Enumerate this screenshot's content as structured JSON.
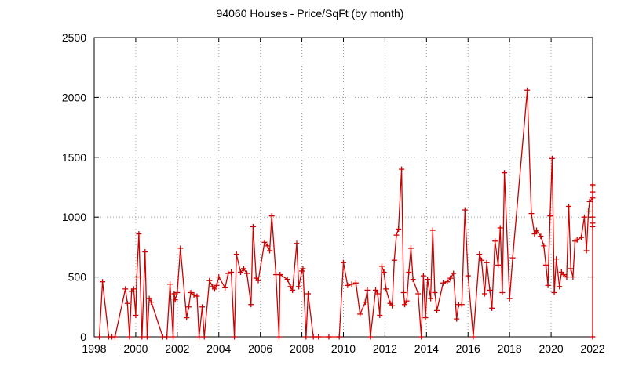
{
  "chart_data": {
    "type": "line",
    "title": "94060 Houses - Price/SqFt (by month)",
    "xlabel": "",
    "ylabel": "",
    "xlim": [
      1998,
      2022
    ],
    "ylim": [
      0,
      2500
    ],
    "xticks": [
      1998,
      2000,
      2002,
      2004,
      2006,
      2008,
      2010,
      2012,
      2014,
      2016,
      2018,
      2020,
      2022
    ],
    "yticks": [
      0,
      500,
      1000,
      1500,
      2000,
      2500
    ],
    "grid": true,
    "legend": "none",
    "color": "#cc0000",
    "series": [
      {
        "points": [
          [
            1998.25,
            0
          ],
          [
            1998.4,
            460
          ],
          [
            1998.7,
            0
          ],
          [
            1998.85,
            0
          ],
          [
            1999.0,
            0
          ],
          [
            1999.5,
            400
          ],
          [
            1999.6,
            280
          ],
          [
            1999.7,
            0
          ],
          [
            1999.8,
            380
          ],
          [
            1999.9,
            400
          ],
          [
            2000.0,
            180
          ],
          [
            2000.05,
            500
          ],
          [
            2000.15,
            860
          ],
          [
            2000.3,
            0
          ],
          [
            2000.45,
            710
          ],
          [
            2000.55,
            0
          ],
          [
            2000.65,
            320
          ],
          [
            2000.75,
            290
          ],
          [
            2001.3,
            0
          ],
          [
            2001.5,
            0
          ],
          [
            2001.65,
            440
          ],
          [
            2001.8,
            0
          ],
          [
            2001.85,
            360
          ],
          [
            2001.9,
            310
          ],
          [
            2002.0,
            370
          ],
          [
            2002.15,
            740
          ],
          [
            2002.45,
            160
          ],
          [
            2002.55,
            250
          ],
          [
            2002.65,
            370
          ],
          [
            2002.8,
            350
          ],
          [
            2002.95,
            340
          ],
          [
            2003.05,
            0
          ],
          [
            2003.2,
            250
          ],
          [
            2003.3,
            0
          ],
          [
            2003.55,
            470
          ],
          [
            2003.7,
            420
          ],
          [
            2003.8,
            400
          ],
          [
            2003.9,
            430
          ],
          [
            2004.0,
            500
          ],
          [
            2004.3,
            410
          ],
          [
            2004.45,
            530
          ],
          [
            2004.6,
            540
          ],
          [
            2004.75,
            0
          ],
          [
            2004.85,
            690
          ],
          [
            2005.05,
            540
          ],
          [
            2005.2,
            570
          ],
          [
            2005.35,
            530
          ],
          [
            2005.55,
            270
          ],
          [
            2005.65,
            920
          ],
          [
            2005.8,
            490
          ],
          [
            2005.9,
            470
          ],
          [
            2006.2,
            790
          ],
          [
            2006.35,
            760
          ],
          [
            2006.45,
            720
          ],
          [
            2006.55,
            1010
          ],
          [
            2006.75,
            520
          ],
          [
            2006.9,
            0
          ],
          [
            2006.95,
            520
          ],
          [
            2007.3,
            480
          ],
          [
            2007.45,
            420
          ],
          [
            2007.55,
            390
          ],
          [
            2007.75,
            780
          ],
          [
            2007.85,
            420
          ],
          [
            2008.0,
            550
          ],
          [
            2008.05,
            570
          ],
          [
            2008.2,
            0
          ],
          [
            2008.3,
            360
          ],
          [
            2008.55,
            0
          ],
          [
            2008.8,
            0
          ],
          [
            2009.3,
            0
          ],
          [
            2009.8,
            0
          ],
          [
            2010.0,
            620
          ],
          [
            2010.2,
            430
          ],
          [
            2010.4,
            440
          ],
          [
            2010.6,
            450
          ],
          [
            2010.8,
            190
          ],
          [
            2011.05,
            290
          ],
          [
            2011.15,
            390
          ],
          [
            2011.3,
            0
          ],
          [
            2011.55,
            390
          ],
          [
            2011.65,
            360
          ],
          [
            2011.75,
            180
          ],
          [
            2011.85,
            590
          ],
          [
            2011.95,
            540
          ],
          [
            2012.05,
            400
          ],
          [
            2012.25,
            280
          ],
          [
            2012.35,
            260
          ],
          [
            2012.45,
            640
          ],
          [
            2012.55,
            850
          ],
          [
            2012.65,
            900
          ],
          [
            2012.8,
            1400
          ],
          [
            2012.9,
            370
          ],
          [
            2012.95,
            270
          ],
          [
            2013.05,
            300
          ],
          [
            2013.15,
            540
          ],
          [
            2013.25,
            740
          ],
          [
            2013.35,
            480
          ],
          [
            2013.6,
            360
          ],
          [
            2013.75,
            0
          ],
          [
            2013.85,
            510
          ],
          [
            2013.95,
            160
          ],
          [
            2014.05,
            480
          ],
          [
            2014.2,
            320
          ],
          [
            2014.3,
            890
          ],
          [
            2014.4,
            370
          ],
          [
            2014.5,
            220
          ],
          [
            2014.8,
            450
          ],
          [
            2015.0,
            460
          ],
          [
            2015.15,
            490
          ],
          [
            2015.3,
            530
          ],
          [
            2015.45,
            150
          ],
          [
            2015.55,
            270
          ],
          [
            2015.7,
            270
          ],
          [
            2015.85,
            1060
          ],
          [
            2016.0,
            510
          ],
          [
            2016.25,
            0
          ],
          [
            2016.55,
            690
          ],
          [
            2016.65,
            640
          ],
          [
            2016.8,
            360
          ],
          [
            2016.9,
            620
          ],
          [
            2017.05,
            390
          ],
          [
            2017.15,
            240
          ],
          [
            2017.3,
            800
          ],
          [
            2017.45,
            600
          ],
          [
            2017.55,
            910
          ],
          [
            2017.65,
            370
          ],
          [
            2017.75,
            1370
          ],
          [
            2018.0,
            320
          ],
          [
            2018.15,
            660
          ],
          [
            2018.85,
            2060
          ],
          [
            2019.05,
            1030
          ],
          [
            2019.2,
            860
          ],
          [
            2019.3,
            890
          ],
          [
            2019.5,
            840
          ],
          [
            2019.65,
            760
          ],
          [
            2019.75,
            600
          ],
          [
            2019.85,
            430
          ],
          [
            2019.95,
            1010
          ],
          [
            2020.05,
            1490
          ],
          [
            2020.15,
            370
          ],
          [
            2020.25,
            650
          ],
          [
            2020.4,
            420
          ],
          [
            2020.5,
            540
          ],
          [
            2020.6,
            520
          ],
          [
            2020.75,
            500
          ],
          [
            2020.85,
            1090
          ],
          [
            2020.95,
            570
          ],
          [
            2021.05,
            500
          ],
          [
            2021.15,
            800
          ],
          [
            2021.25,
            810
          ],
          [
            2021.45,
            830
          ],
          [
            2021.6,
            1000
          ],
          [
            2021.7,
            720
          ],
          [
            2021.8,
            1050
          ],
          [
            2021.85,
            1130
          ],
          [
            2022.0,
            1160
          ],
          [
            2022.2,
            1210
          ],
          [
            2022.35,
            1270
          ],
          [
            2022.55,
            1260
          ],
          [
            2022.7,
            1000
          ],
          [
            2022.85,
            950
          ],
          [
            2023.0,
            920
          ],
          [
            2023.05,
            0
          ]
        ]
      }
    ]
  }
}
